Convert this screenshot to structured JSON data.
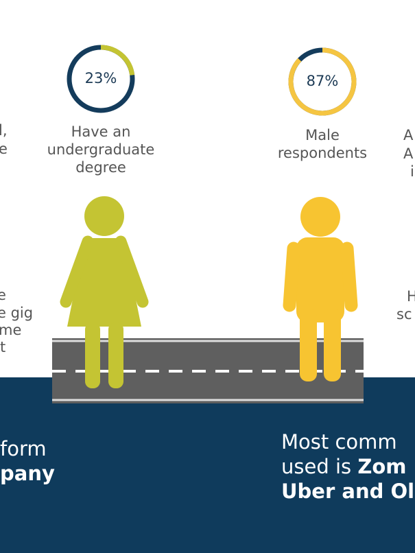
{
  "stats": [
    {
      "percent": 23,
      "label": "23%",
      "caption": [
        "Have an",
        "undergraduate",
        "degree"
      ]
    },
    {
      "percent": 87,
      "label": "87%",
      "caption": [
        "Male",
        "respondents"
      ]
    }
  ],
  "left_fragments": {
    "top": [
      "l,",
      "e"
    ],
    "middle": [
      "e",
      "e gig",
      "me",
      "t"
    ],
    "bottom": [
      "form",
      "pany"
    ]
  },
  "right_fragments": {
    "top": [
      "A",
      "A",
      "i"
    ],
    "middle": [
      "H",
      "sc"
    ],
    "bottom": {
      "line1": "Most comm",
      "line2_regular": "used is ",
      "line2_bold": "Zom",
      "line3": "Uber and Ol"
    }
  }
}
